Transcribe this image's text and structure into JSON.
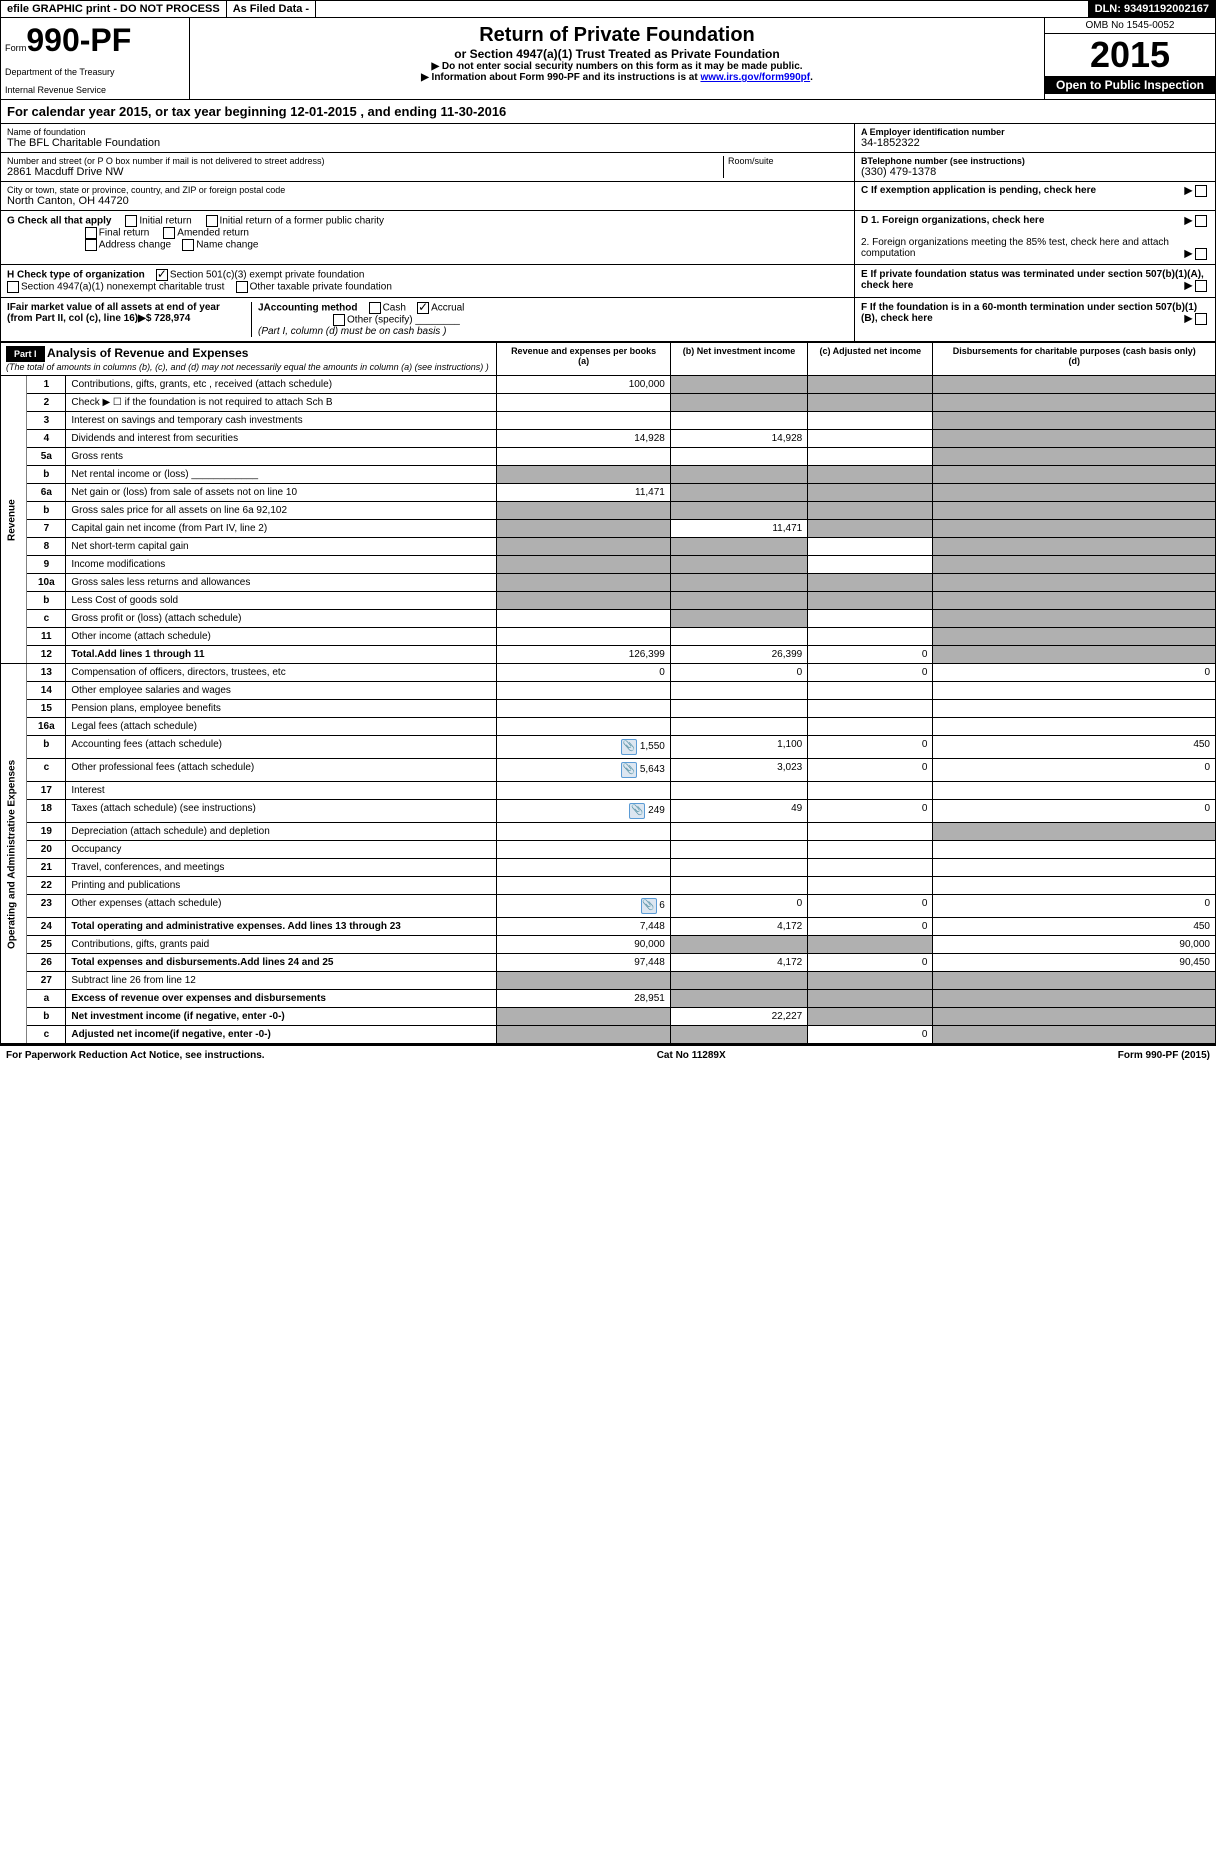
{
  "top_bar": {
    "efile": "efile GRAPHIC print - DO NOT PROCESS",
    "as_filed": "As Filed Data -",
    "dln": "DLN: 93491192002167"
  },
  "header": {
    "form_label": "Form",
    "form_number": "990-PF",
    "dept1": "Department of the Treasury",
    "dept2": "Internal Revenue Service",
    "title": "Return of Private Foundation",
    "subtitle": "or Section 4947(a)(1) Trust Treated as Private Foundation",
    "note1": "▶ Do not enter social security numbers on this form as it may be made public.",
    "note2": "▶ Information about Form 990-PF and its instructions is at ",
    "link": "www.irs.gov/form990pf",
    "omb": "OMB No 1545-0052",
    "year": "2015",
    "inspect": "Open to Public Inspection"
  },
  "cal_year": "For calendar year 2015, or tax year beginning 12-01-2015          , and ending 11-30-2016",
  "info": {
    "name_lbl": "Name of foundation",
    "name": "The BFL Charitable Foundation",
    "addr_lbl": "Number and street (or P O box number if mail is not delivered to street address)",
    "addr": "2861 Macduff Drive NW",
    "room_lbl": "Room/suite",
    "city_lbl": "City or town, state or province, country, and ZIP or foreign postal code",
    "city": "North Canton, OH  44720",
    "ein_lbl": "A Employer identification number",
    "ein": "34-1852322",
    "phone_lbl": "BTelephone number (see instructions)",
    "phone": "(330) 479-1378",
    "pending_lbl": "C If exemption application is pending, check here"
  },
  "checks": {
    "g_lbl": "G Check all that apply",
    "g_initial": "Initial return",
    "g_initial_former": "Initial return of a former public charity",
    "g_final": "Final return",
    "g_amended": "Amended return",
    "g_addr": "Address change",
    "g_name": "Name change",
    "h_lbl": "H Check type of organization",
    "h_501c3": "Section 501(c)(3) exempt private foundation",
    "h_4947": "Section 4947(a)(1) nonexempt charitable trust",
    "h_other": "Other taxable private foundation",
    "i_lbl": "IFair market value of all assets at end of year (from Part II, col (c), line 16)▶$  728,974",
    "j_lbl": "JAccounting method",
    "j_cash": "Cash",
    "j_accrual": "Accrual",
    "j_other": "Other (specify)",
    "j_note": "(Part I, column (d) must be on cash basis )",
    "d1": "D 1. Foreign organizations, check here",
    "d2": "2. Foreign organizations meeting the 85% test, check here and attach computation",
    "e": "E  If private foundation status was terminated under section 507(b)(1)(A), check here",
    "f": "F  If the foundation is in a 60-month termination under section 507(b)(1)(B), check here"
  },
  "part1": {
    "hdr": "Part I",
    "title": "Analysis of Revenue and Expenses",
    "note": "(The total of amounts in columns (b), (c), and (d) may not necessarily equal the amounts in column (a) (see instructions) )",
    "col_a": "Revenue and expenses per books",
    "col_a_pre": "(a)",
    "col_b": "Net investment income",
    "col_b_pre": "(b)",
    "col_c": "Adjusted net income",
    "col_c_pre": "(c)",
    "col_d": "Disbursements for charitable purposes (cash basis only)",
    "col_d_pre": "(d)"
  },
  "revenue_label": "Revenue",
  "expenses_label": "Operating and Administrative Expenses",
  "rows": [
    {
      "n": "1",
      "desc": "Contributions, gifts, grants, etc , received (attach schedule)",
      "a": "100,000",
      "b": "",
      "c": "",
      "d": "",
      "b_sh": true,
      "c_sh": true,
      "d_sh": true
    },
    {
      "n": "2",
      "desc": "Check ▶ ☐ if the foundation is not required to attach Sch B",
      "a": "",
      "b": "",
      "c": "",
      "d": "",
      "b_sh": true,
      "c_sh": true,
      "d_sh": true
    },
    {
      "n": "3",
      "desc": "Interest on savings and temporary cash investments",
      "a": "",
      "b": "",
      "c": "",
      "d": "",
      "d_sh": true
    },
    {
      "n": "4",
      "desc": "Dividends and interest from securities",
      "a": "14,928",
      "b": "14,928",
      "c": "",
      "d": "",
      "d_sh": true
    },
    {
      "n": "5a",
      "desc": "Gross rents",
      "a": "",
      "b": "",
      "c": "",
      "d": "",
      "d_sh": true
    },
    {
      "n": "b",
      "desc": "Net rental income or (loss) ____________",
      "a": "",
      "b": "",
      "c": "",
      "d": "",
      "a_sh": true,
      "b_sh": true,
      "c_sh": true,
      "d_sh": true
    },
    {
      "n": "6a",
      "desc": "Net gain or (loss) from sale of assets not on line 10",
      "a": "11,471",
      "b": "",
      "c": "",
      "d": "",
      "b_sh": true,
      "c_sh": true,
      "d_sh": true
    },
    {
      "n": "b",
      "desc": "Gross sales price for all assets on line 6a     92,102",
      "a": "",
      "b": "",
      "c": "",
      "d": "",
      "a_sh": true,
      "b_sh": true,
      "c_sh": true,
      "d_sh": true
    },
    {
      "n": "7",
      "desc": "Capital gain net income (from Part IV, line 2)",
      "a": "",
      "b": "11,471",
      "c": "",
      "d": "",
      "a_sh": true,
      "c_sh": true,
      "d_sh": true
    },
    {
      "n": "8",
      "desc": "Net short-term capital gain",
      "a": "",
      "b": "",
      "c": "",
      "d": "",
      "a_sh": true,
      "b_sh": true,
      "d_sh": true
    },
    {
      "n": "9",
      "desc": "Income modifications",
      "a": "",
      "b": "",
      "c": "",
      "d": "",
      "a_sh": true,
      "b_sh": true,
      "d_sh": true
    },
    {
      "n": "10a",
      "desc": "Gross sales less returns and allowances",
      "a": "",
      "b": "",
      "c": "",
      "d": "",
      "a_sh": true,
      "b_sh": true,
      "c_sh": true,
      "d_sh": true
    },
    {
      "n": "b",
      "desc": "Less Cost of goods sold",
      "a": "",
      "b": "",
      "c": "",
      "d": "",
      "a_sh": true,
      "b_sh": true,
      "c_sh": true,
      "d_sh": true
    },
    {
      "n": "c",
      "desc": "Gross profit or (loss) (attach schedule)",
      "a": "",
      "b": "",
      "c": "",
      "d": "",
      "b_sh": true,
      "d_sh": true
    },
    {
      "n": "11",
      "desc": "Other income (attach schedule)",
      "a": "",
      "b": "",
      "c": "",
      "d": "",
      "d_sh": true
    },
    {
      "n": "12",
      "desc": "Total.Add lines 1 through 11",
      "a": "126,399",
      "b": "26,399",
      "c": "0",
      "d": "",
      "bold": true,
      "d_sh": true
    },
    {
      "n": "13",
      "desc": "Compensation of officers, directors, trustees, etc",
      "a": "0",
      "b": "0",
      "c": "0",
      "d": "0"
    },
    {
      "n": "14",
      "desc": "Other employee salaries and wages",
      "a": "",
      "b": "",
      "c": "",
      "d": ""
    },
    {
      "n": "15",
      "desc": "Pension plans, employee benefits",
      "a": "",
      "b": "",
      "c": "",
      "d": ""
    },
    {
      "n": "16a",
      "desc": "Legal fees (attach schedule)",
      "a": "",
      "b": "",
      "c": "",
      "d": ""
    },
    {
      "n": "b",
      "desc": "Accounting fees (attach schedule)",
      "a": "1,550",
      "b": "1,100",
      "c": "0",
      "d": "450",
      "icon": true
    },
    {
      "n": "c",
      "desc": "Other professional fees (attach schedule)",
      "a": "5,643",
      "b": "3,023",
      "c": "0",
      "d": "0",
      "icon": true
    },
    {
      "n": "17",
      "desc": "Interest",
      "a": "",
      "b": "",
      "c": "",
      "d": ""
    },
    {
      "n": "18",
      "desc": "Taxes (attach schedule) (see instructions)",
      "a": "249",
      "b": "49",
      "c": "0",
      "d": "0",
      "icon": true
    },
    {
      "n": "19",
      "desc": "Depreciation (attach schedule) and depletion",
      "a": "",
      "b": "",
      "c": "",
      "d": "",
      "d_sh": true
    },
    {
      "n": "20",
      "desc": "Occupancy",
      "a": "",
      "b": "",
      "c": "",
      "d": ""
    },
    {
      "n": "21",
      "desc": "Travel, conferences, and meetings",
      "a": "",
      "b": "",
      "c": "",
      "d": ""
    },
    {
      "n": "22",
      "desc": "Printing and publications",
      "a": "",
      "b": "",
      "c": "",
      "d": ""
    },
    {
      "n": "23",
      "desc": "Other expenses (attach schedule)",
      "a": "6",
      "b": "0",
      "c": "0",
      "d": "0",
      "icon": true
    },
    {
      "n": "24",
      "desc": "Total operating and administrative expenses. Add lines 13 through 23",
      "a": "7,448",
      "b": "4,172",
      "c": "0",
      "d": "450",
      "bold": true
    },
    {
      "n": "25",
      "desc": "Contributions, gifts, grants paid",
      "a": "90,000",
      "b": "",
      "c": "",
      "d": "90,000",
      "b_sh": true,
      "c_sh": true
    },
    {
      "n": "26",
      "desc": "Total expenses and disbursements.Add lines 24 and 25",
      "a": "97,448",
      "b": "4,172",
      "c": "0",
      "d": "90,450",
      "bold": true
    },
    {
      "n": "27",
      "desc": "Subtract line 26 from line 12",
      "a": "",
      "b": "",
      "c": "",
      "d": "",
      "a_sh": true,
      "b_sh": true,
      "c_sh": true,
      "d_sh": true
    },
    {
      "n": "a",
      "desc": "Excess of revenue over expenses and disbursements",
      "a": "28,951",
      "b": "",
      "c": "",
      "d": "",
      "bold": true,
      "b_sh": true,
      "c_sh": true,
      "d_sh": true
    },
    {
      "n": "b",
      "desc": "Net investment income (if negative, enter -0-)",
      "a": "",
      "b": "22,227",
      "c": "",
      "d": "",
      "bold": true,
      "a_sh": true,
      "c_sh": true,
      "d_sh": true
    },
    {
      "n": "c",
      "desc": "Adjusted net income(if negative, enter -0-)",
      "a": "",
      "b": "",
      "c": "0",
      "d": "",
      "bold": true,
      "a_sh": true,
      "b_sh": true,
      "d_sh": true
    }
  ],
  "footer": {
    "left": "For Paperwork Reduction Act Notice, see instructions.",
    "mid": "Cat No 11289X",
    "right": "Form 990-PF (2015)"
  },
  "colors": {
    "black": "#000000",
    "white": "#ffffff",
    "link": "#0000ee",
    "shaded": "#b0b0b0",
    "icon_bg": "#dce6f1",
    "icon_border": "#5b9bd5"
  }
}
